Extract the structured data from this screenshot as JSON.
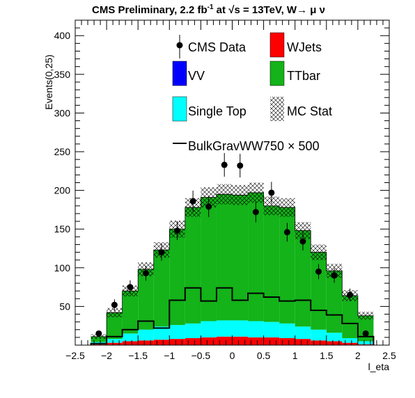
{
  "chart_data": {
    "type": "bar",
    "title": "CMS Preliminary, 2.2 fb",
    "title_sup": "-1",
    "title_rest": " at  ",
    "title_sqrt": "s = 13TeV, W",
    "title_arrow": "→ μ  ν",
    "xlabel": "l_eta",
    "ylabel": "Events(0,25)",
    "xlim": [
      -2.5,
      2.5
    ],
    "ylim": [
      0,
      420
    ],
    "x_ticks": [
      "−2.5",
      "−2",
      "−1.5",
      "−1",
      "−0.5",
      "0",
      "0.5",
      "1",
      "1.5",
      "2",
      "2.5"
    ],
    "y_ticks": [
      "50",
      "100",
      "150",
      "200",
      "250",
      "300",
      "350",
      "400"
    ],
    "bin_edges": [
      -2.25,
      -2.0,
      -1.75,
      -1.5,
      -1.25,
      -1.0,
      -0.75,
      -0.5,
      -0.25,
      0.0,
      0.25,
      0.5,
      0.75,
      1.0,
      1.25,
      1.5,
      1.75,
      2.0,
      2.25
    ],
    "stack": [
      {
        "name": "WJets",
        "color": "#ff0000",
        "values": [
          1,
          3,
          5,
          6,
          7,
          8,
          9,
          10,
          11,
          11,
          10,
          10,
          9,
          8,
          6,
          5,
          3,
          1
        ]
      },
      {
        "name": "VV",
        "color": "#0000ff",
        "values": [
          0,
          0,
          0,
          0,
          0,
          0,
          0,
          0,
          0,
          0,
          0,
          0,
          0,
          0,
          0,
          0,
          0,
          0
        ]
      },
      {
        "name": "Single Top",
        "color": "#00ffff",
        "values": [
          3,
          5,
          10,
          14,
          17,
          18,
          19,
          21,
          21,
          21,
          21,
          20,
          19,
          16,
          14,
          11,
          6,
          4
        ]
      },
      {
        "name": "TTbar",
        "color": "#13b319",
        "values": [
          7,
          34,
          55,
          78,
          99,
          124,
          150,
          160,
          163,
          162,
          166,
          150,
          150,
          124,
          100,
          80,
          55,
          33
        ]
      }
    ],
    "mc_stat": [
      3,
      6,
      7,
      9,
      10,
      11,
      12,
      13,
      13,
      13,
      13,
      12,
      12,
      11,
      10,
      9,
      7,
      5
    ],
    "signal": {
      "name": "BulkGravWW750 × 500",
      "color": "#000000",
      "values": [
        2,
        11,
        20,
        31,
        22,
        58,
        74,
        57,
        74,
        58,
        67,
        62,
        57,
        58,
        45,
        39,
        28,
        11
      ]
    },
    "data": {
      "name": "CMS Data",
      "x": [
        -2.125,
        -1.875,
        -1.625,
        -1.375,
        -1.125,
        -0.875,
        -0.625,
        -0.375,
        -0.125,
        0.125,
        0.375,
        0.625,
        0.875,
        1.125,
        1.375,
        1.625,
        1.875,
        2.125
      ],
      "values": [
        15,
        52,
        75,
        93,
        120,
        148,
        186,
        179,
        233,
        232,
        172,
        197,
        146,
        134,
        95,
        90,
        65,
        15
      ]
    },
    "legend": [
      {
        "label": "CMS Data",
        "kind": "marker"
      },
      {
        "label": "WJets",
        "kind": "fill",
        "color": "#ff0000"
      },
      {
        "label": "VV",
        "kind": "fill",
        "color": "#0000ff"
      },
      {
        "label": "TTbar",
        "kind": "fill",
        "color": "#13b319"
      },
      {
        "label": "Single Top",
        "kind": "fill",
        "color": "#00ffff"
      },
      {
        "label": "MC Stat",
        "kind": "hatch"
      },
      {
        "label": "BulkGravWW750 × 500",
        "kind": "line"
      }
    ]
  }
}
